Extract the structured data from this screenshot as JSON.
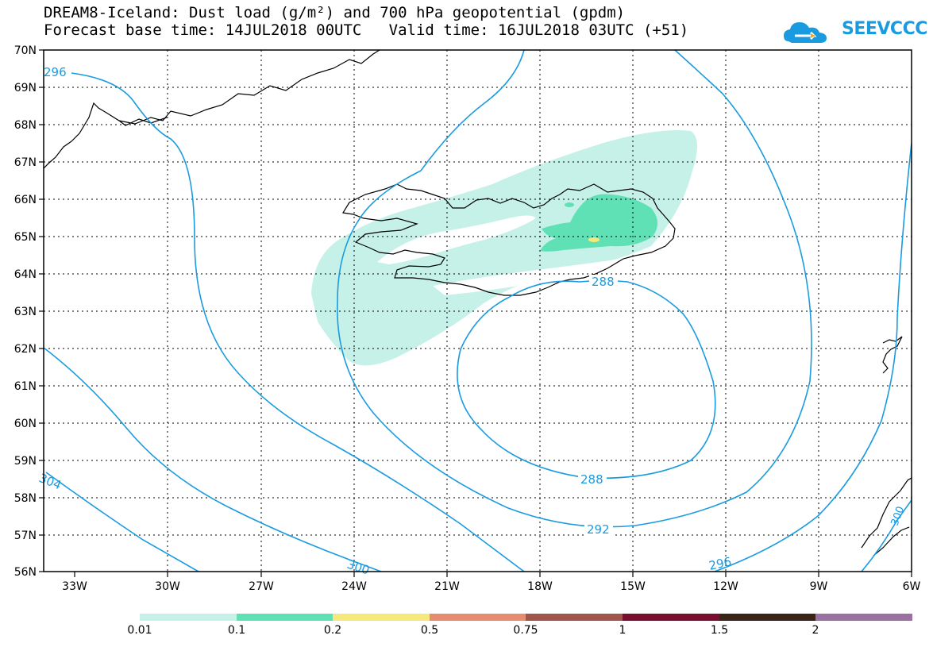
{
  "title": {
    "line1": "DREAM8-Iceland: Dust load (g/m²) and 700 hPa geopotential (gpdm)",
    "line2": "Forecast base time: 14JUL2018 00UTC   Valid time: 16JUL2018 03UTC (+51)"
  },
  "logo": {
    "text": "SEEVCCC"
  },
  "map": {
    "lat_labels": [
      "70N",
      "69N",
      "68N",
      "67N",
      "66N",
      "65N",
      "64N",
      "63N",
      "62N",
      "61N",
      "60N",
      "59N",
      "58N",
      "57N",
      "56N"
    ],
    "lon_labels": [
      "33W",
      "30W",
      "27W",
      "24W",
      "21W",
      "18W",
      "15W",
      "12W",
      "9W",
      "6W"
    ]
  },
  "contours": {
    "labels": [
      "296",
      "288",
      "288",
      "292",
      "300",
      "296",
      "304",
      "300"
    ]
  },
  "legend": {
    "labels": [
      "0.01",
      "0.1",
      "0.2",
      "0.5",
      "0.75",
      "1",
      "1.5",
      "2"
    ],
    "colors": [
      "#c6f1e8",
      "#5fe0b5",
      "#f6e87a",
      "#e78d6f",
      "#a2554a",
      "#7a0e2f",
      "#3a2417",
      "#9a71a1"
    ]
  },
  "colors": {
    "contour": "#1a9be0",
    "coast": "#000000"
  }
}
